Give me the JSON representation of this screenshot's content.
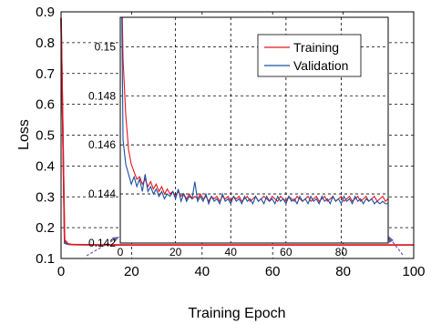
{
  "chart_data": {
    "type": "line",
    "xlabel": "Training Epoch",
    "ylabel": "Loss",
    "xlim": [
      0,
      100
    ],
    "ylim": [
      0.1,
      0.9
    ],
    "xticks": [
      0,
      20,
      40,
      60,
      80,
      100
    ],
    "yticks": [
      0.1,
      0.2,
      0.3,
      0.4,
      0.5,
      0.6,
      0.7,
      0.8,
      0.9
    ],
    "grid": true,
    "series": [
      {
        "name": "Training",
        "color": "#e8141c",
        "x": [
          0,
          1,
          2,
          3,
          5,
          10,
          20,
          40,
          60,
          80,
          100
        ],
        "y": [
          0.88,
          0.16,
          0.147,
          0.1455,
          0.145,
          0.1442,
          0.1438,
          0.1438,
          0.1438,
          0.1438,
          0.1438
        ]
      },
      {
        "name": "Validation",
        "color": "#1a4fa0",
        "x": [
          0,
          1,
          2,
          3,
          5,
          10,
          20,
          40,
          60,
          80,
          100
        ],
        "y": [
          0.88,
          0.15,
          0.146,
          0.145,
          0.1446,
          0.144,
          0.1437,
          0.1437,
          0.1437,
          0.1437,
          0.1436
        ]
      }
    ],
    "inset": {
      "xlim": [
        0,
        97
      ],
      "ylim": [
        0.142,
        0.1512
      ],
      "xticks": [
        0,
        20,
        40,
        60,
        80
      ],
      "yticks": [
        0.142,
        0.144,
        0.146,
        0.148,
        0.15
      ],
      "ytick_labels": [
        "0.142",
        "0.144",
        "0.146",
        "0.148",
        "0.15"
      ],
      "grid": true,
      "legend": {
        "position": "top-right",
        "entries": [
          "Training",
          "Validation"
        ]
      },
      "series": [
        {
          "name": "Training",
          "color": "#e8141c",
          "x": [
            0,
            1,
            2,
            3,
            4,
            5,
            6,
            7,
            8,
            9,
            10,
            11,
            12,
            13,
            14,
            15,
            16,
            17,
            18,
            19,
            20,
            21,
            22,
            23,
            24,
            25,
            26,
            27,
            28,
            29,
            30,
            31,
            32,
            33,
            34,
            35,
            36,
            37,
            38,
            39,
            40,
            41,
            42,
            43,
            44,
            45,
            46,
            47,
            48,
            49,
            50,
            51,
            52,
            53,
            54,
            55,
            56,
            57,
            58,
            59,
            60,
            61,
            62,
            63,
            64,
            65,
            66,
            67,
            68,
            69,
            70,
            71,
            72,
            73,
            74,
            75,
            76,
            77,
            78,
            79,
            80,
            81,
            82,
            83,
            84,
            85,
            86,
            87,
            88,
            89,
            90,
            91,
            92,
            93,
            94,
            95,
            96,
            97
          ],
          "y": [
            0.156,
            0.1495,
            0.1472,
            0.1458,
            0.1452,
            0.1449,
            0.1446,
            0.1447,
            0.1444,
            0.1446,
            0.1443,
            0.1445,
            0.1442,
            0.1444,
            0.1441,
            0.1443,
            0.144,
            0.1442,
            0.144,
            0.1441,
            0.1439,
            0.1441,
            0.1439,
            0.144,
            0.1438,
            0.144,
            0.1438,
            0.1439,
            0.1438,
            0.144,
            0.1438,
            0.1439,
            0.1437,
            0.1439,
            0.1438,
            0.1439,
            0.1437,
            0.1439,
            0.1438,
            0.1439,
            0.1437,
            0.1439,
            0.1438,
            0.1439,
            0.1437,
            0.1438,
            0.1439,
            0.1437,
            0.1438,
            0.1439,
            0.1437,
            0.1438,
            0.1439,
            0.1438,
            0.1437,
            0.1439,
            0.1438,
            0.1437,
            0.1439,
            0.1438,
            0.1437,
            0.1439,
            0.1438,
            0.1437,
            0.1439,
            0.1438,
            0.1437,
            0.1438,
            0.1439,
            0.1437,
            0.1438,
            0.1439,
            0.1437,
            0.1438,
            0.1439,
            0.1437,
            0.1438,
            0.1439,
            0.1437,
            0.1438,
            0.1439,
            0.1437,
            0.1438,
            0.1439,
            0.1437,
            0.1438,
            0.1439,
            0.1437,
            0.1438,
            0.1439,
            0.1437,
            0.1438,
            0.1439,
            0.1437,
            0.1438,
            0.1439,
            0.1437,
            0.1438
          ]
        },
        {
          "name": "Validation",
          "color": "#1a4fa0",
          "x": [
            0,
            1,
            2,
            3,
            4,
            5,
            6,
            7,
            8,
            9,
            10,
            11,
            12,
            13,
            14,
            15,
            16,
            17,
            18,
            19,
            20,
            21,
            22,
            23,
            24,
            25,
            26,
            27,
            28,
            29,
            30,
            31,
            32,
            33,
            34,
            35,
            36,
            37,
            38,
            39,
            40,
            41,
            42,
            43,
            44,
            45,
            46,
            47,
            48,
            49,
            50,
            51,
            52,
            53,
            54,
            55,
            56,
            57,
            58,
            59,
            60,
            61,
            62,
            63,
            64,
            65,
            66,
            67,
            68,
            69,
            70,
            71,
            72,
            73,
            74,
            75,
            76,
            77,
            78,
            79,
            80,
            81,
            82,
            83,
            84,
            85,
            86,
            87,
            88,
            89,
            90,
            91,
            92,
            93,
            94,
            95,
            96,
            97
          ],
          "y": [
            0.158,
            0.1462,
            0.1452,
            0.1448,
            0.1444,
            0.1447,
            0.1443,
            0.1446,
            0.1441,
            0.1448,
            0.1441,
            0.1443,
            0.144,
            0.1442,
            0.1439,
            0.1441,
            0.1438,
            0.144,
            0.1439,
            0.1441,
            0.1438,
            0.1442,
            0.1437,
            0.144,
            0.1437,
            0.1439,
            0.1438,
            0.1445,
            0.1437,
            0.1439,
            0.1437,
            0.144,
            0.1436,
            0.1439,
            0.1437,
            0.1438,
            0.1436,
            0.144,
            0.1437,
            0.1438,
            0.1436,
            0.1439,
            0.1437,
            0.1438,
            0.1436,
            0.1439,
            0.1437,
            0.1438,
            0.1436,
            0.1439,
            0.1437,
            0.1438,
            0.1436,
            0.1439,
            0.1437,
            0.1438,
            0.1436,
            0.1439,
            0.1437,
            0.1438,
            0.1436,
            0.1439,
            0.1437,
            0.1438,
            0.1436,
            0.1439,
            0.1437,
            0.1438,
            0.1436,
            0.1439,
            0.1437,
            0.1438,
            0.1436,
            0.1439,
            0.1437,
            0.1438,
            0.1436,
            0.1439,
            0.1437,
            0.1438,
            0.1436,
            0.1439,
            0.1437,
            0.1438,
            0.1436,
            0.1439,
            0.1437,
            0.1438,
            0.1436,
            0.1438,
            0.1437,
            0.1438,
            0.1436,
            0.1437,
            0.1436,
            0.1437,
            0.1436,
            0.1436
          ]
        }
      ]
    },
    "annotations": [
      {
        "type": "dashed-arrow",
        "color": "#6a5aa8",
        "description": "zoom indicator from main plot toward inset (left)"
      },
      {
        "type": "dashed-arrow",
        "color": "#6a5aa8",
        "description": "zoom indicator from main plot toward inset (right)"
      }
    ]
  }
}
